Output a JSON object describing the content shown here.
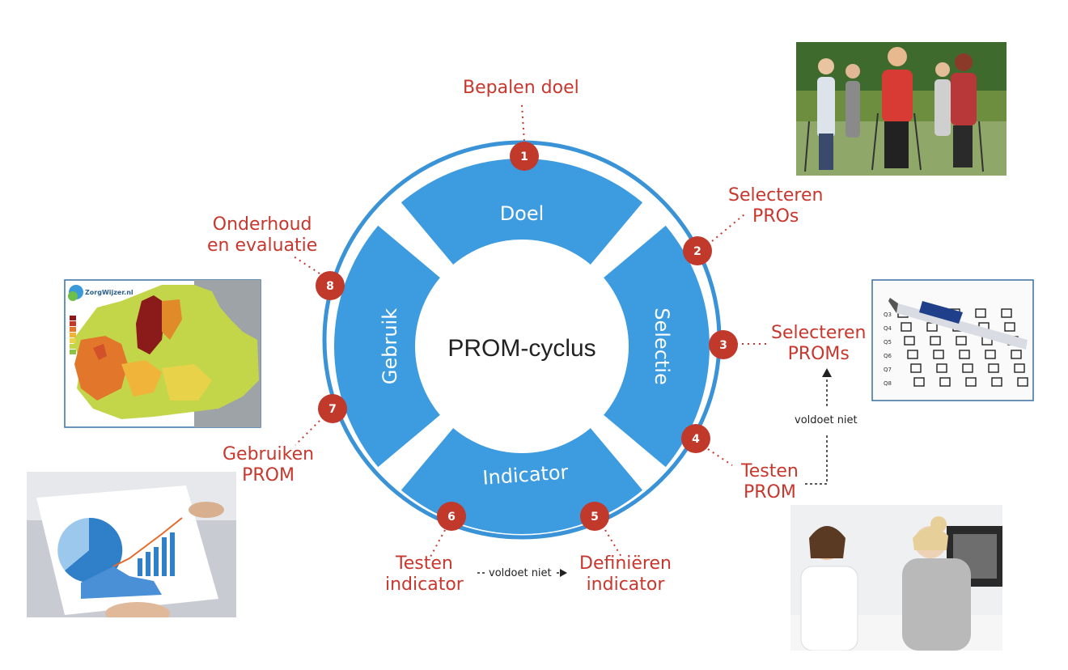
{
  "center": {
    "label": "PROM-cyclus"
  },
  "quadrants": [
    {
      "id": "doel",
      "label": "Doel"
    },
    {
      "id": "selectie",
      "label": "Selectie"
    },
    {
      "id": "indicator",
      "label": "Indicator"
    },
    {
      "id": "gebruik",
      "label": "Gebruik"
    }
  ],
  "steps": [
    {
      "num": "1",
      "lines": [
        "Bepalen doel"
      ]
    },
    {
      "num": "2",
      "lines": [
        "Selecteren",
        "PROs"
      ]
    },
    {
      "num": "3",
      "lines": [
        "Selecteren",
        "PROMs"
      ]
    },
    {
      "num": "4",
      "lines": [
        "Testen",
        "PROM"
      ]
    },
    {
      "num": "5",
      "lines": [
        "Definiëren",
        "indicator"
      ]
    },
    {
      "num": "6",
      "lines": [
        "Testen",
        "indicator"
      ]
    },
    {
      "num": "7",
      "lines": [
        "Gebruiken",
        "PROM"
      ]
    },
    {
      "num": "8",
      "lines": [
        "Onderhoud",
        "en evaluatie"
      ]
    }
  ],
  "feedback": [
    {
      "label": "voldoet niet"
    },
    {
      "label": "voldoet niet"
    }
  ],
  "map_card": {
    "logo_text": "ZorgWijzer.nl"
  },
  "questionnaire": {
    "rows": [
      "Q3",
      "Q4",
      "Q5",
      "Q6",
      "Q7",
      "Q8"
    ]
  },
  "colors": {
    "accent": "#c8372d",
    "blue": "#3d9be0",
    "ring": "#3a93d6",
    "node": "#c0392b"
  }
}
